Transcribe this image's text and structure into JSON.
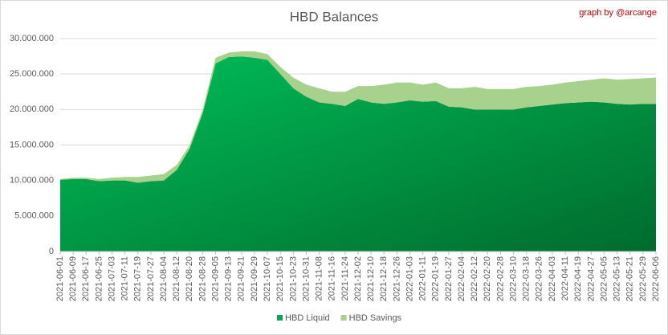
{
  "chart_data": {
    "type": "stacked_area",
    "title": "HBD Balances",
    "credit": "graph by @arcange",
    "categories": [
      "2021-06-01",
      "2021-06-09",
      "2021-06-17",
      "2021-06-25",
      "2021-07-03",
      "2021-07-11",
      "2021-07-19",
      "2021-07-27",
      "2021-08-04",
      "2021-08-12",
      "2021-08-20",
      "2021-08-28",
      "2021-09-05",
      "2021-09-13",
      "2021-09-21",
      "2021-09-29",
      "2021-10-07",
      "2021-10-15",
      "2021-10-23",
      "2021-10-31",
      "2021-11-08",
      "2021-11-16",
      "2021-11-24",
      "2021-12-02",
      "2021-12-10",
      "2021-12-18",
      "2021-12-26",
      "2022-01-03",
      "2022-01-11",
      "2022-01-19",
      "2022-01-27",
      "2022-02-04",
      "2022-02-12",
      "2022-02-20",
      "2022-02-28",
      "2022-03-10",
      "2022-03-18",
      "2022-03-26",
      "2022-04-03",
      "2022-04-11",
      "2022-04-19",
      "2022-04-27",
      "2022-05-05",
      "2022-05-13",
      "2022-05-21",
      "2022-05-29",
      "2022-06-06"
    ],
    "series": [
      {
        "name": "HBD Liquid",
        "color": "#00a84f",
        "values": [
          10100000,
          10200000,
          10200000,
          9900000,
          10000000,
          10000000,
          9700000,
          9900000,
          10000000,
          11500000,
          14500000,
          19500000,
          26500000,
          27400000,
          27500000,
          27300000,
          27000000,
          25000000,
          23000000,
          21800000,
          21000000,
          20800000,
          20500000,
          21500000,
          21000000,
          20800000,
          21000000,
          21300000,
          21100000,
          21200000,
          20400000,
          20300000,
          20000000,
          20000000,
          20000000,
          20000000,
          20300000,
          20500000,
          20700000,
          20900000,
          21000000,
          21100000,
          21000000,
          20800000,
          20700000,
          20800000,
          20800000
        ]
      },
      {
        "name": "HBD Savings",
        "color": "#a9d18e",
        "values": [
          100000,
          200000,
          200000,
          300000,
          400000,
          500000,
          800000,
          800000,
          900000,
          700000,
          500000,
          500000,
          800000,
          600000,
          700000,
          900000,
          800000,
          1000000,
          1500000,
          1700000,
          2000000,
          1700000,
          2000000,
          1800000,
          2300000,
          2700000,
          2800000,
          2500000,
          2400000,
          2600000,
          2600000,
          2700000,
          3200000,
          2900000,
          2900000,
          2900000,
          2900000,
          2800000,
          2800000,
          2900000,
          3000000,
          3100000,
          3400000,
          3400000,
          3600000,
          3600000,
          3700000
        ]
      }
    ],
    "ylim": [
      0,
      30000000
    ],
    "yticks": [
      {
        "value": 0,
        "label": "0"
      },
      {
        "value": 5000000,
        "label": "5.000.000"
      },
      {
        "value": 10000000,
        "label": "10.000.000"
      },
      {
        "value": 15000000,
        "label": "15.000.000"
      },
      {
        "value": 20000000,
        "label": "20.000.000"
      },
      {
        "value": 25000000,
        "label": "25.000.000"
      },
      {
        "value": 30000000,
        "label": "30.000.000"
      }
    ],
    "grid": true,
    "legend": "bottom"
  }
}
